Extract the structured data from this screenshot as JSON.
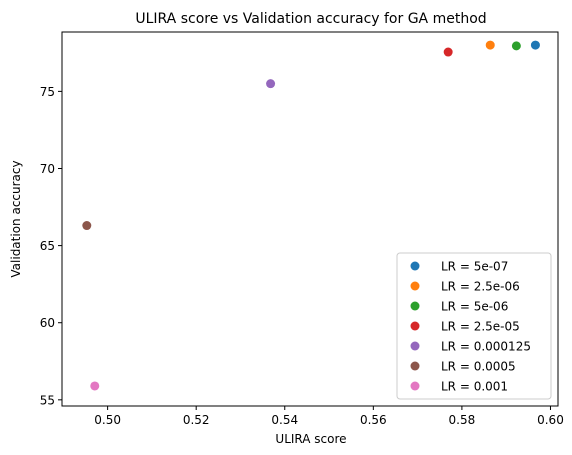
{
  "chart_data": {
    "type": "scatter",
    "title": "ULIRA score vs Validation accuracy for GA method",
    "xlabel": "ULIRA score",
    "ylabel": "Validation accuracy",
    "xlim": [
      0.4897,
      0.6017
    ],
    "ylim": [
      54.6,
      78.85
    ],
    "xticks": [
      0.5,
      0.52,
      0.54,
      0.56,
      0.58,
      0.6
    ],
    "xtick_labels": [
      "0.50",
      "0.52",
      "0.54",
      "0.56",
      "0.58",
      "0.60"
    ],
    "yticks": [
      55,
      60,
      65,
      70,
      75
    ],
    "ytick_labels": [
      "55",
      "60",
      "65",
      "70",
      "75"
    ],
    "legend_position": "lower-right",
    "series": [
      {
        "name": "LR = 5e-07",
        "color": "#1f77b4",
        "points": [
          {
            "x": 0.5966,
            "y": 78.0
          }
        ]
      },
      {
        "name": "LR = 2.5e-06",
        "color": "#ff7f0e",
        "points": [
          {
            "x": 0.5864,
            "y": 78.0
          }
        ]
      },
      {
        "name": "LR = 5e-06",
        "color": "#2ca02c",
        "points": [
          {
            "x": 0.5923,
            "y": 77.95
          }
        ]
      },
      {
        "name": "LR = 2.5e-05",
        "color": "#d62728",
        "points": [
          {
            "x": 0.5769,
            "y": 77.55
          }
        ]
      },
      {
        "name": "LR = 0.000125",
        "color": "#9467bd",
        "points": [
          {
            "x": 0.5368,
            "y": 75.5
          }
        ]
      },
      {
        "name": "LR = 0.0005",
        "color": "#8c564b",
        "points": [
          {
            "x": 0.4953,
            "y": 66.3
          }
        ]
      },
      {
        "name": "LR = 0.001",
        "color": "#e377c2",
        "points": [
          {
            "x": 0.4971,
            "y": 55.9
          }
        ]
      }
    ]
  }
}
